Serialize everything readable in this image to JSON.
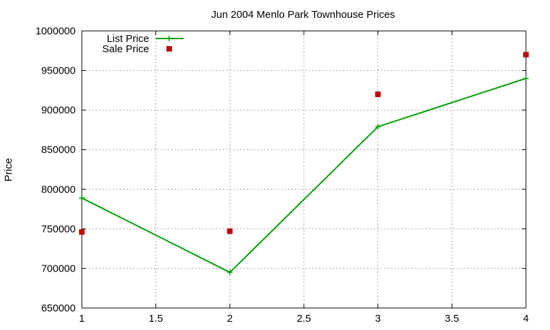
{
  "chart_data": {
    "type": "line",
    "title": "Jun 2004 Menlo Park Townhouse Prices",
    "xlabel": "",
    "ylabel": "Price",
    "xlim": [
      1,
      4
    ],
    "ylim": [
      650000,
      1000000
    ],
    "x_ticks": [
      1,
      1.5,
      2,
      2.5,
      3,
      3.5,
      4
    ],
    "x_tick_labels": [
      "1",
      "1.5",
      "2",
      "2.5",
      "3",
      "3.5",
      "4"
    ],
    "y_ticks": [
      650000,
      700000,
      750000,
      800000,
      850000,
      900000,
      950000,
      1000000
    ],
    "y_tick_labels": [
      "650000",
      "700000",
      "750000",
      "800000",
      "850000",
      "900000",
      "950000",
      "1000000"
    ],
    "grid": true,
    "legend_position": "top-left",
    "series": [
      {
        "name": "List Price",
        "style": "line-with-plus-markers",
        "color": "#009e00",
        "x": [
          1,
          2,
          3,
          4
        ],
        "y": [
          789000,
          695000,
          879000,
          940000
        ]
      },
      {
        "name": "Sale Price",
        "style": "square-markers",
        "color": "#c00000",
        "x": [
          1,
          2,
          3,
          4
        ],
        "y": [
          746000,
          747000,
          920000,
          970000
        ]
      }
    ]
  }
}
